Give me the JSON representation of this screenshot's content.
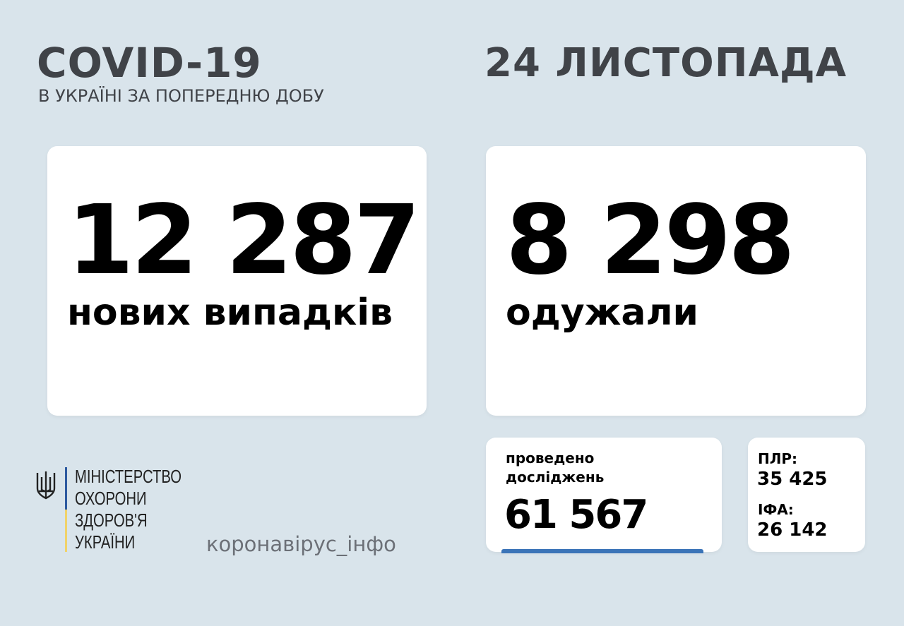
{
  "header": {
    "title": "COVID-19",
    "subtitle": "В УКРАЇНІ ЗА ПОПЕРЕДНЮ ДОБУ",
    "date": "24 ЛИСТОПАДА"
  },
  "cases": {
    "value": "12 287",
    "label": "нових випадків"
  },
  "recovered": {
    "value": "8 298",
    "label": "одужали"
  },
  "tests": {
    "label_line1": "проведено",
    "label_line2": "досліджень",
    "value": "61 567"
  },
  "test_split": {
    "pcr_label": "ПЛР:",
    "pcr_value": "35 425",
    "ifa_label": "ІФА:",
    "ifa_value": "26 142"
  },
  "ministry": {
    "lines": [
      "МІНІСТЕРСТВО",
      "ОХОРОНИ",
      "ЗДОРОВ'Я",
      "УКРАЇНИ"
    ],
    "icon": "trident-icon",
    "flag_colors": [
      "#2d5aa0",
      "#f0d26a"
    ]
  },
  "hashtag": "коронавірус_інфо",
  "colors": {
    "background": "#d9e4eb",
    "accent": "#3b74b8",
    "heading": "#404348"
  }
}
